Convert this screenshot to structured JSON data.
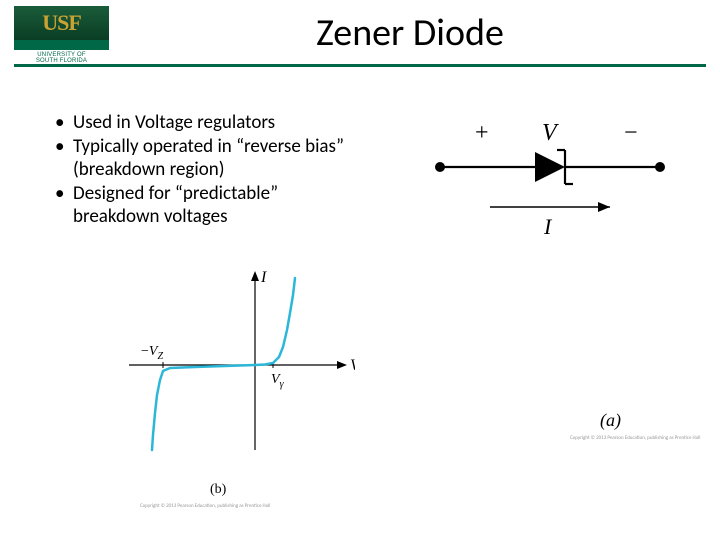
{
  "logo": {
    "text_top": "USF",
    "text_bottom": "UNIVERSITY OF\nSOUTH FLORIDA",
    "gold": "#c9a233",
    "green": "#006747"
  },
  "title": "Zener Diode",
  "bullets": [
    "Used in Voltage regulators",
    "Typically operated in “reverse bias” (breakdown region)",
    "Designed for “predictable” breakdown voltages"
  ],
  "circuit": {
    "type": "diagram",
    "label_plus": "+",
    "label_V": "V",
    "label_minus": "−",
    "label_I": "I",
    "stroke": "#000000",
    "stroke_width": 2.2,
    "node_radius": 5,
    "triangle_base": 30,
    "triangle_height": 30,
    "zener_bar_len": 34,
    "zener_tail": 8
  },
  "iv_curve": {
    "type": "line",
    "axis_stroke": "#000000",
    "axis_width": 1.2,
    "curve_color": "#2bb7d8",
    "curve_width": 2.5,
    "label_I": "I",
    "label_V": "V",
    "label_neg_Vz_prefix": "−",
    "label_neg_Vz_V": "V",
    "label_neg_Vz_Z": "Z",
    "label_Vgamma_V": "V",
    "label_Vgamma_gamma": "γ",
    "origin": {
      "x": 155,
      "y": 90
    },
    "xlim": [
      0,
      255
    ],
    "ylim": [
      0,
      180
    ],
    "x_range": [
      -126,
      85
    ],
    "y_range": [
      -85,
      87
    ],
    "vz_x": -92,
    "vgamma_x": 18,
    "curve_points": [
      [
        -103,
        -85
      ],
      [
        -102,
        -70
      ],
      [
        -100,
        -48
      ],
      [
        -98,
        -30
      ],
      [
        -95,
        -15
      ],
      [
        -92,
        -6
      ],
      [
        -85,
        -3
      ],
      [
        -60,
        -2
      ],
      [
        -30,
        -1
      ],
      [
        0,
        0
      ],
      [
        10,
        0.5
      ],
      [
        18,
        2
      ],
      [
        24,
        8
      ],
      [
        28,
        18
      ],
      [
        32,
        35
      ],
      [
        35,
        52
      ],
      [
        38,
        70
      ],
      [
        40,
        87
      ]
    ]
  },
  "captions": {
    "a": "(a)",
    "b": "(b)"
  },
  "copyright_a": "Copyright © 2013 Pearson Education, publishing as Prentice Hall",
  "copyright_b": "Copyright © 2013 Pearson Education, publishing as Prentice Hall"
}
